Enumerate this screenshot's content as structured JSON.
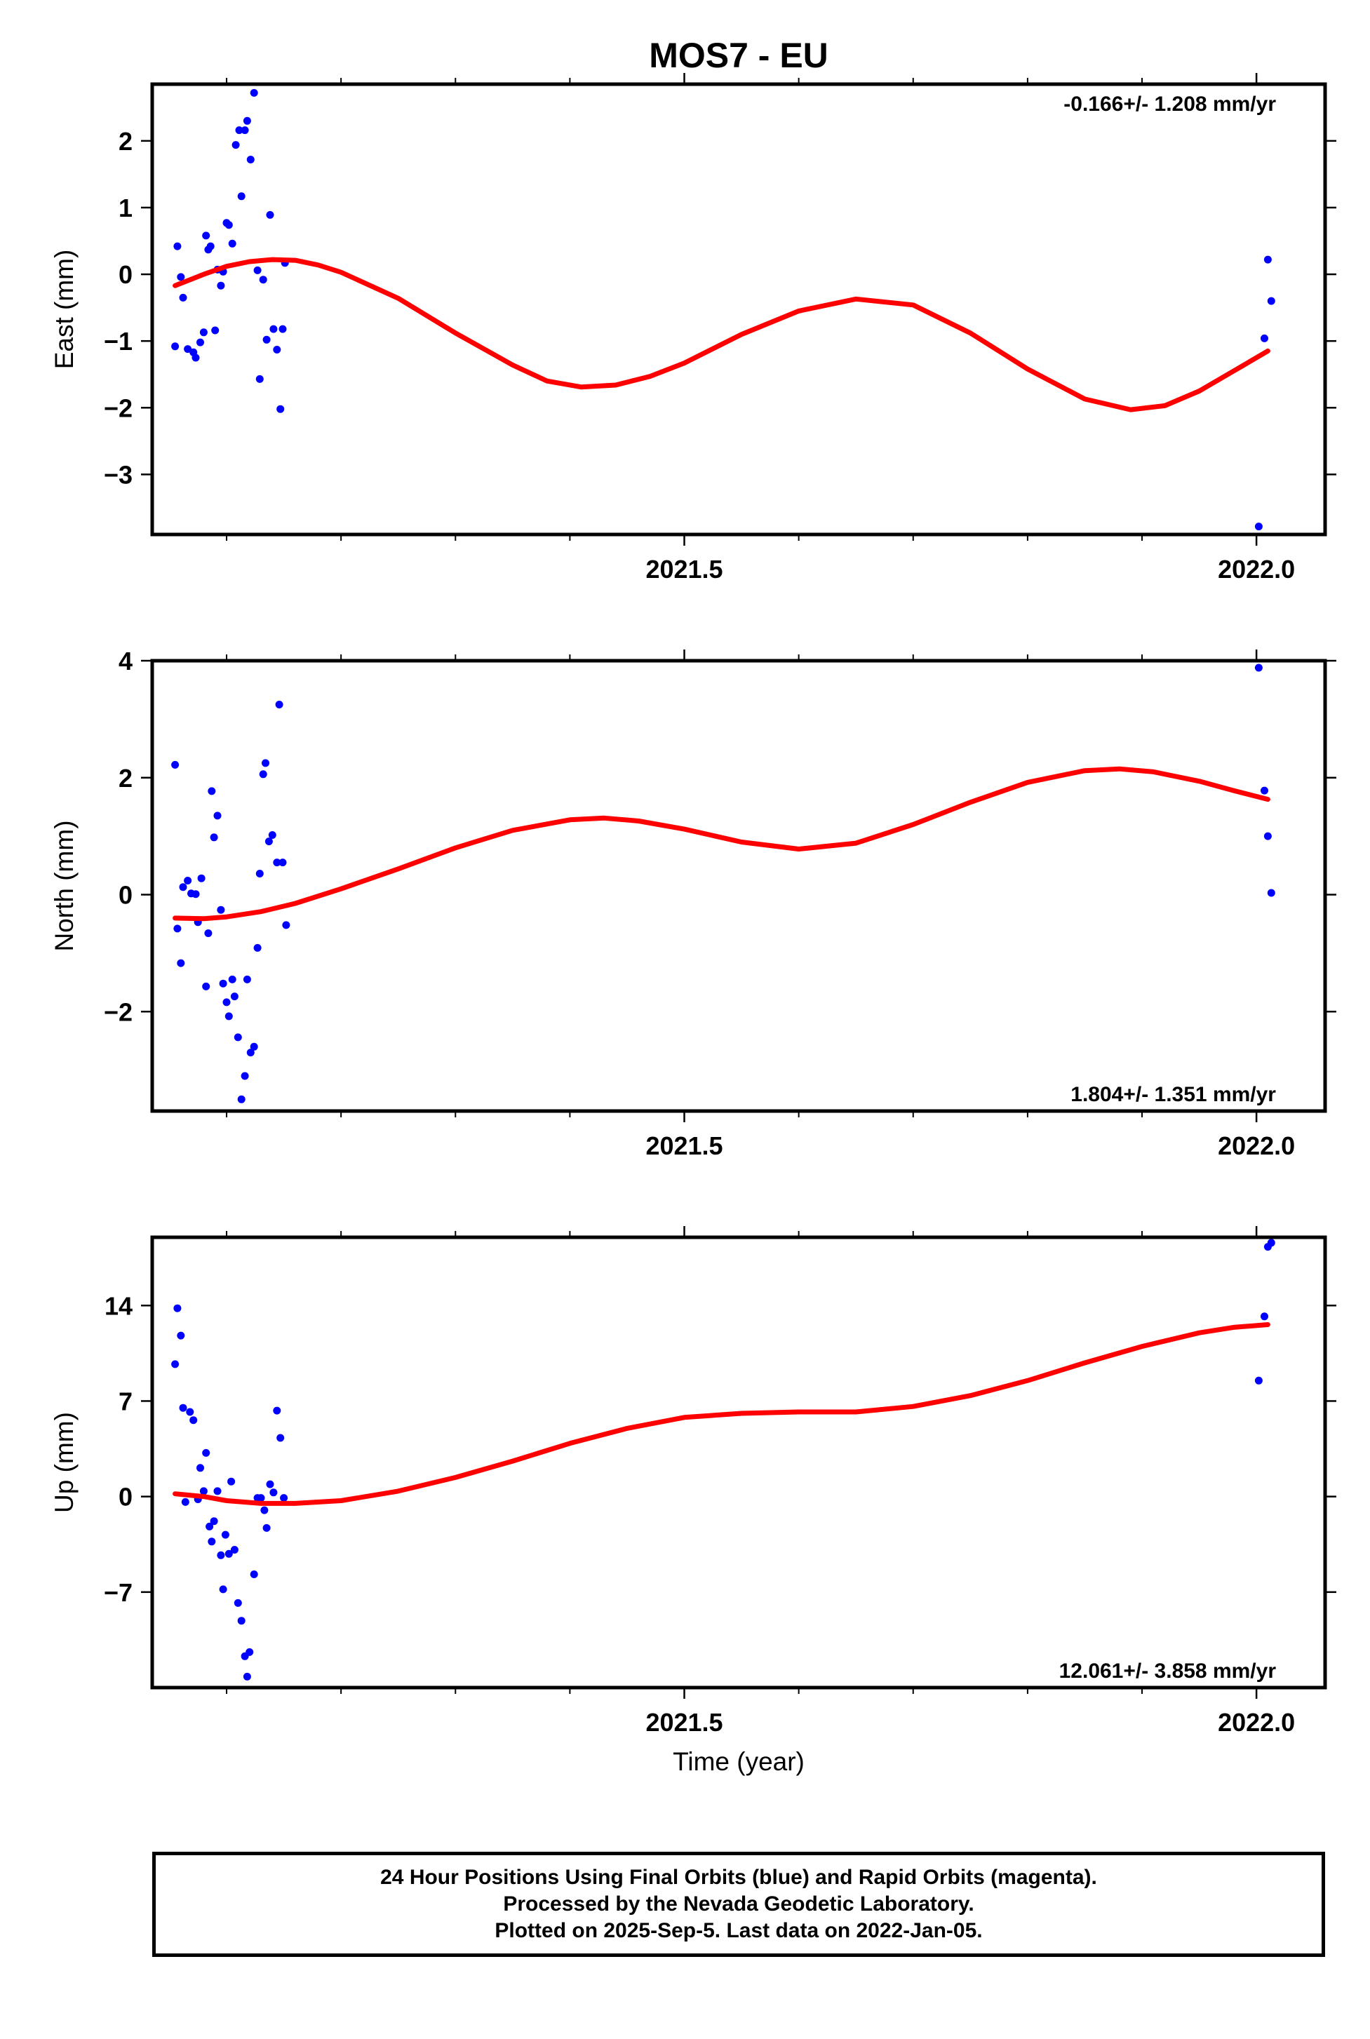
{
  "title": "MOS7 - EU",
  "footer": {
    "lines": [
      "24 Hour Positions Using Final Orbits (blue) and Rapid Orbits (magenta).",
      "Processed by the Nevada Geodetic Laboratory.",
      "Plotted on 2025-Sep-5. Last data on 2022-Jan-05."
    ]
  },
  "colors": {
    "points": "#0000ff",
    "fit": "#ff0000",
    "frame": "#000000"
  },
  "chart_data": [
    {
      "type": "scatter",
      "component": "East",
      "ylabel": "East (mm)",
      "xlabel": "",
      "rate_label": "-0.166+/- 1.208 mm/yr",
      "xlim": [
        2021.035,
        2022.06
      ],
      "ylim": [
        -3.9,
        2.85
      ],
      "yticks": [
        2,
        1,
        0,
        -1,
        -2,
        -3
      ],
      "ytick_labels": [
        "2",
        "1",
        "0",
        "−1",
        "−2",
        "−3"
      ],
      "xtick_labels": [
        "2021.5",
        "2022.0"
      ],
      "points": [
        [
          2021.055,
          -1.08
        ],
        [
          2021.057,
          0.42
        ],
        [
          2021.06,
          -0.04
        ],
        [
          2021.062,
          -0.35
        ],
        [
          2021.066,
          -1.12
        ],
        [
          2021.071,
          -1.17
        ],
        [
          2021.073,
          -1.25
        ],
        [
          2021.077,
          -1.02
        ],
        [
          2021.08,
          -0.87
        ],
        [
          2021.082,
          0.58
        ],
        [
          2021.084,
          0.37
        ],
        [
          2021.086,
          0.42
        ],
        [
          2021.09,
          -0.84
        ],
        [
          2021.092,
          0.07
        ],
        [
          2021.095,
          -0.17
        ],
        [
          2021.097,
          0.04
        ],
        [
          2021.1,
          0.77
        ],
        [
          2021.102,
          0.74
        ],
        [
          2021.105,
          0.46
        ],
        [
          2021.108,
          1.94
        ],
        [
          2021.111,
          2.16
        ],
        [
          2021.113,
          1.17
        ],
        [
          2021.116,
          2.16
        ],
        [
          2021.118,
          2.3
        ],
        [
          2021.121,
          1.72
        ],
        [
          2021.124,
          2.72
        ],
        [
          2021.127,
          0.06
        ],
        [
          2021.129,
          -1.57
        ],
        [
          2021.132,
          -0.08
        ],
        [
          2021.135,
          -0.98
        ],
        [
          2021.138,
          0.89
        ],
        [
          2021.141,
          -0.82
        ],
        [
          2021.144,
          -1.13
        ],
        [
          2021.147,
          -2.02
        ],
        [
          2021.149,
          -0.82
        ],
        [
          2021.151,
          0.17
        ],
        [
          2022.002,
          -3.78
        ],
        [
          2022.007,
          -0.96
        ],
        [
          2022.01,
          0.22
        ],
        [
          2022.013,
          -0.4
        ]
      ],
      "fit": [
        [
          2021.055,
          -0.17
        ],
        [
          2021.08,
          0.0
        ],
        [
          2021.1,
          0.12
        ],
        [
          2021.12,
          0.19
        ],
        [
          2021.14,
          0.22
        ],
        [
          2021.16,
          0.21
        ],
        [
          2021.18,
          0.14
        ],
        [
          2021.2,
          0.03
        ],
        [
          2021.25,
          -0.36
        ],
        [
          2021.3,
          -0.88
        ],
        [
          2021.35,
          -1.36
        ],
        [
          2021.38,
          -1.6
        ],
        [
          2021.41,
          -1.69
        ],
        [
          2021.44,
          -1.66
        ],
        [
          2021.47,
          -1.53
        ],
        [
          2021.5,
          -1.33
        ],
        [
          2021.55,
          -0.9
        ],
        [
          2021.6,
          -0.55
        ],
        [
          2021.65,
          -0.37
        ],
        [
          2021.7,
          -0.46
        ],
        [
          2021.75,
          -0.88
        ],
        [
          2021.8,
          -1.42
        ],
        [
          2021.85,
          -1.87
        ],
        [
          2021.89,
          -2.03
        ],
        [
          2021.92,
          -1.97
        ],
        [
          2021.95,
          -1.75
        ],
        [
          2021.98,
          -1.45
        ],
        [
          2022.01,
          -1.15
        ]
      ]
    },
    {
      "type": "scatter",
      "component": "North",
      "ylabel": "North (mm)",
      "xlabel": "",
      "rate_label": "1.804+/- 1.351 mm/yr",
      "xlim": [
        2021.035,
        2022.06
      ],
      "ylim": [
        -3.7,
        4.0
      ],
      "yticks": [
        4,
        2,
        0,
        -2
      ],
      "ytick_labels": [
        "4",
        "2",
        "0",
        "−2"
      ],
      "xtick_labels": [
        "2021.5",
        "2022.0"
      ],
      "points": [
        [
          2021.055,
          2.22
        ],
        [
          2021.057,
          -0.58
        ],
        [
          2021.06,
          -1.17
        ],
        [
          2021.062,
          0.13
        ],
        [
          2021.066,
          0.24
        ],
        [
          2021.069,
          0.02
        ],
        [
          2021.073,
          0.01
        ],
        [
          2021.075,
          -0.47
        ],
        [
          2021.078,
          0.28
        ],
        [
          2021.082,
          -1.57
        ],
        [
          2021.084,
          -0.66
        ],
        [
          2021.087,
          1.77
        ],
        [
          2021.089,
          0.98
        ],
        [
          2021.092,
          1.35
        ],
        [
          2021.095,
          -0.26
        ],
        [
          2021.097,
          -1.52
        ],
        [
          2021.1,
          -1.84
        ],
        [
          2021.102,
          -2.08
        ],
        [
          2021.105,
          -1.45
        ],
        [
          2021.107,
          -1.74
        ],
        [
          2021.11,
          -2.44
        ],
        [
          2021.113,
          -3.5
        ],
        [
          2021.116,
          -3.1
        ],
        [
          2021.118,
          -1.45
        ],
        [
          2021.121,
          -2.7
        ],
        [
          2021.124,
          -2.6
        ],
        [
          2021.127,
          -0.91
        ],
        [
          2021.129,
          0.36
        ],
        [
          2021.132,
          2.06
        ],
        [
          2021.134,
          2.25
        ],
        [
          2021.137,
          0.91
        ],
        [
          2021.14,
          1.02
        ],
        [
          2021.144,
          0.55
        ],
        [
          2021.146,
          3.25
        ],
        [
          2021.149,
          0.55
        ],
        [
          2021.152,
          -0.52
        ],
        [
          2022.002,
          3.88
        ],
        [
          2022.007,
          1.78
        ],
        [
          2022.01,
          1.0
        ],
        [
          2022.013,
          0.03
        ]
      ],
      "fit": [
        [
          2021.055,
          -0.4
        ],
        [
          2021.08,
          -0.41
        ],
        [
          2021.1,
          -0.38
        ],
        [
          2021.13,
          -0.29
        ],
        [
          2021.16,
          -0.15
        ],
        [
          2021.2,
          0.1
        ],
        [
          2021.25,
          0.44
        ],
        [
          2021.3,
          0.8
        ],
        [
          2021.35,
          1.1
        ],
        [
          2021.4,
          1.28
        ],
        [
          2021.43,
          1.31
        ],
        [
          2021.46,
          1.26
        ],
        [
          2021.5,
          1.12
        ],
        [
          2021.55,
          0.9
        ],
        [
          2021.6,
          0.78
        ],
        [
          2021.65,
          0.88
        ],
        [
          2021.7,
          1.2
        ],
        [
          2021.75,
          1.58
        ],
        [
          2021.8,
          1.92
        ],
        [
          2021.85,
          2.12
        ],
        [
          2021.88,
          2.15
        ],
        [
          2021.91,
          2.1
        ],
        [
          2021.95,
          1.94
        ],
        [
          2021.98,
          1.78
        ],
        [
          2022.01,
          1.63
        ]
      ]
    },
    {
      "type": "scatter",
      "component": "Up",
      "ylabel": "Up (mm)",
      "xlabel": "Time (year)",
      "rate_label": "12.061+/- 3.858 mm/yr",
      "xlim": [
        2021.035,
        2022.06
      ],
      "ylim": [
        -14,
        19
      ],
      "yticks": [
        14,
        7,
        0,
        -7
      ],
      "ytick_labels": [
        "14",
        "7",
        "0",
        "−7"
      ],
      "xtick_labels": [
        "2021.5",
        "2022.0"
      ],
      "points": [
        [
          2021.055,
          9.7
        ],
        [
          2021.057,
          13.8
        ],
        [
          2021.06,
          11.8
        ],
        [
          2021.062,
          6.5
        ],
        [
          2021.064,
          -0.4
        ],
        [
          2021.068,
          6.2
        ],
        [
          2021.071,
          5.6
        ],
        [
          2021.075,
          -0.2
        ],
        [
          2021.077,
          2.1
        ],
        [
          2021.08,
          0.4
        ],
        [
          2021.082,
          3.2
        ],
        [
          2021.085,
          -2.2
        ],
        [
          2021.087,
          -3.3
        ],
        [
          2021.089,
          -1.8
        ],
        [
          2021.092,
          0.4
        ],
        [
          2021.095,
          -4.3
        ],
        [
          2021.097,
          -6.8
        ],
        [
          2021.099,
          -2.8
        ],
        [
          2021.102,
          -4.2
        ],
        [
          2021.104,
          1.1
        ],
        [
          2021.107,
          -3.9
        ],
        [
          2021.11,
          -7.8
        ],
        [
          2021.113,
          -9.1
        ],
        [
          2021.116,
          -11.7
        ],
        [
          2021.118,
          -13.2
        ],
        [
          2021.12,
          -11.4
        ],
        [
          2021.124,
          -5.7
        ],
        [
          2021.127,
          -0.1
        ],
        [
          2021.13,
          -0.1
        ],
        [
          2021.133,
          -1.0
        ],
        [
          2021.135,
          -2.3
        ],
        [
          2021.138,
          0.9
        ],
        [
          2021.141,
          0.3
        ],
        [
          2021.144,
          6.3
        ],
        [
          2021.147,
          4.3
        ],
        [
          2021.15,
          -0.1
        ],
        [
          2022.002,
          8.5
        ],
        [
          2022.007,
          13.2
        ],
        [
          2022.01,
          18.3
        ],
        [
          2022.013,
          18.6
        ]
      ],
      "fit": [
        [
          2021.055,
          0.2
        ],
        [
          2021.08,
          0.0
        ],
        [
          2021.1,
          -0.3
        ],
        [
          2021.13,
          -0.5
        ],
        [
          2021.16,
          -0.5
        ],
        [
          2021.2,
          -0.3
        ],
        [
          2021.25,
          0.4
        ],
        [
          2021.3,
          1.4
        ],
        [
          2021.35,
          2.6
        ],
        [
          2021.4,
          3.9
        ],
        [
          2021.45,
          5.0
        ],
        [
          2021.5,
          5.8
        ],
        [
          2021.55,
          6.1
        ],
        [
          2021.6,
          6.2
        ],
        [
          2021.65,
          6.2
        ],
        [
          2021.7,
          6.6
        ],
        [
          2021.75,
          7.4
        ],
        [
          2021.8,
          8.5
        ],
        [
          2021.85,
          9.8
        ],
        [
          2021.9,
          11.0
        ],
        [
          2021.95,
          12.0
        ],
        [
          2021.98,
          12.4
        ],
        [
          2022.01,
          12.6
        ]
      ]
    }
  ]
}
